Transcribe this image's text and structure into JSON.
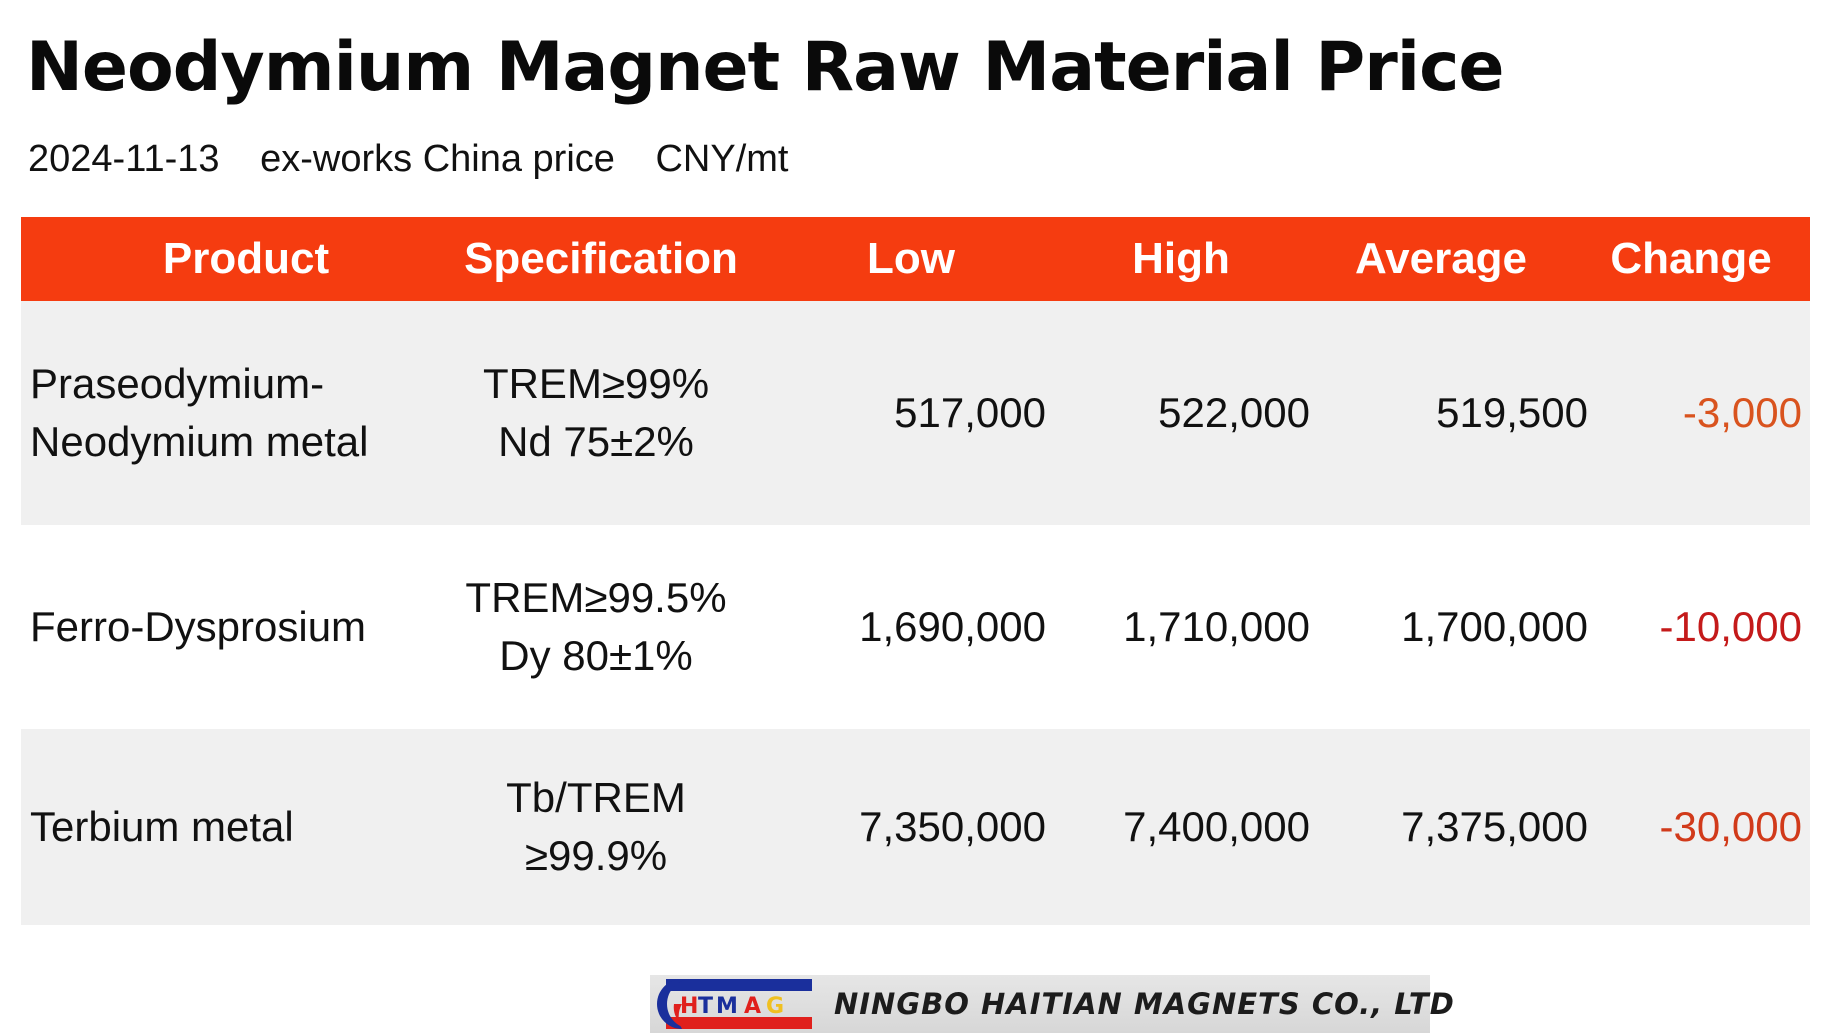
{
  "title": "Neodymium Magnet Raw Material Price",
  "subtitle": {
    "date": "2024-11-13",
    "basis": "ex-works China price",
    "unit": "CNY/mt"
  },
  "table": {
    "headers": [
      "Product",
      "Specification",
      "Low",
      "High",
      "Average",
      "Change"
    ],
    "rows": [
      {
        "product": [
          "Praseodymium-",
          "Neodymium metal"
        ],
        "spec": [
          "TREM≥99%",
          "Nd 75±2%"
        ],
        "low": "517,000",
        "high": "522,000",
        "average": "519,500",
        "change": "-3,000"
      },
      {
        "product": [
          "Ferro-Dysprosium"
        ],
        "spec": [
          "TREM≥99.5%",
          "Dy 80±1%"
        ],
        "low": "1,690,000",
        "high": "1,710,000",
        "average": "1,700,000",
        "change": "-10,000"
      },
      {
        "product": [
          "Terbium metal"
        ],
        "spec": [
          "Tb/TREM",
          "≥99.9%"
        ],
        "low": "7,350,000",
        "high": "7,400,000",
        "average": "7,375,000",
        "change": "-30,000"
      }
    ]
  },
  "colors": {
    "header_bg": "#f53c10",
    "header_text": "#ffffff",
    "row_shade": "#f0f0f0",
    "change_row1": "#d9531e",
    "change_row2": "#c41a1a",
    "change_row3": "#d13a1a"
  },
  "footer": {
    "logo_text": "HTMAG",
    "company": "NINGBO HAITIAN MAGNETS CO., LTD",
    "logo_icon": "htmag-logo-icon"
  }
}
